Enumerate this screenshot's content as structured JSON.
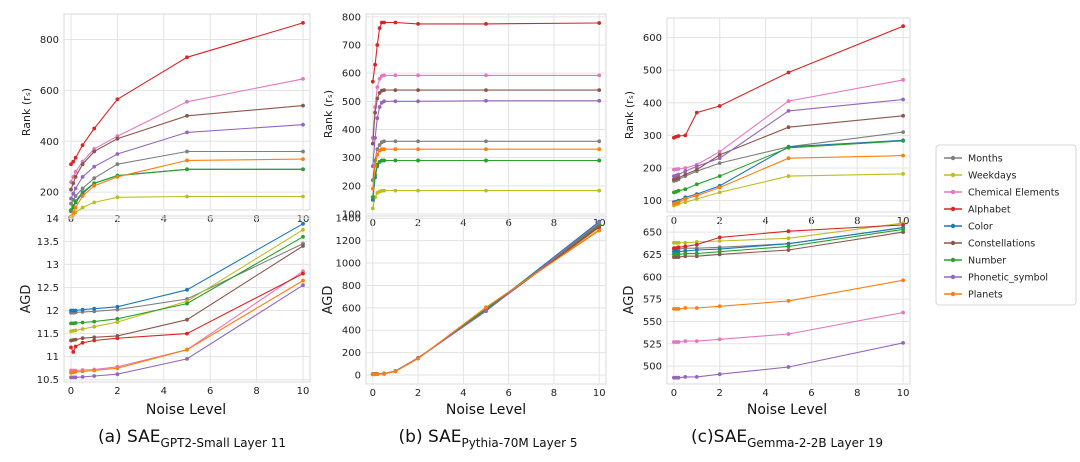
{
  "legend": [
    {
      "name": "Months",
      "color": "#7f7f7f"
    },
    {
      "name": "Weekdays",
      "color": "#bcbd22"
    },
    {
      "name": "Chemical Elements",
      "color": "#e377c2"
    },
    {
      "name": "Alphabet",
      "color": "#d62728"
    },
    {
      "name": "Color",
      "color": "#1f77b4"
    },
    {
      "name": "Constellations",
      "color": "#8c564b"
    },
    {
      "name": "Number",
      "color": "#2ca02c"
    },
    {
      "name": "Phonetic_symbol",
      "color": "#9467bd"
    },
    {
      "name": "Planets",
      "color": "#ff7f0e"
    }
  ],
  "columns": [
    {
      "caption_main": "(a) SAE",
      "caption_sub": "GPT2-Small Layer 11"
    },
    {
      "caption_main": "(b) SAE",
      "caption_sub": "Pythia-70M Layer 5"
    },
    {
      "caption_main": "(c)SAE",
      "caption_sub": "Gemma-2-2B Layer 19"
    }
  ],
  "x_label": "Noise Level",
  "chart_data": [
    {
      "id": "a-rank",
      "type": "line",
      "ylabel": "Rank (rₛ)",
      "x": [
        0,
        0.1,
        0.2,
        0.5,
        1,
        2,
        5,
        10
      ],
      "xlim": [
        -0.3,
        10.3
      ],
      "xticks": [
        0,
        2,
        4,
        6,
        8,
        10
      ],
      "ylim": [
        130,
        900
      ],
      "yticks": [
        200,
        400,
        600,
        800
      ],
      "series": [
        {
          "name": "Months",
          "values": [
            155,
            170,
            185,
            215,
            255,
            310,
            360,
            360
          ]
        },
        {
          "name": "Weekdays",
          "values": [
            100,
            110,
            120,
            140,
            160,
            180,
            183,
            183
          ]
        },
        {
          "name": "Chemical Elements",
          "values": [
            240,
            260,
            280,
            320,
            370,
            420,
            555,
            645
          ]
        },
        {
          "name": "Alphabet",
          "values": [
            310,
            320,
            335,
            385,
            450,
            565,
            730,
            865
          ]
        },
        {
          "name": "Color",
          "values": [
            125,
            140,
            160,
            195,
            235,
            265,
            290,
            290
          ]
        },
        {
          "name": "Constellations",
          "values": [
            210,
            235,
            260,
            310,
            360,
            410,
            500,
            540
          ]
        },
        {
          "name": "Number",
          "values": [
            130,
            145,
            165,
            200,
            235,
            265,
            290,
            290
          ]
        },
        {
          "name": "Phonetic_symbol",
          "values": [
            175,
            195,
            215,
            260,
            300,
            350,
            435,
            465
          ]
        },
        {
          "name": "Planets",
          "values": [
            105,
            120,
            140,
            185,
            225,
            260,
            325,
            330
          ]
        }
      ]
    },
    {
      "id": "b-rank",
      "type": "line",
      "ylabel": "Rank (rₛ)",
      "x": [
        0,
        0.1,
        0.2,
        0.3,
        0.4,
        0.5,
        1,
        2,
        5,
        10
      ],
      "xlim": [
        -0.3,
        10.3
      ],
      "xticks": [
        0,
        2,
        4,
        6,
        8,
        10
      ],
      "ylim": [
        100,
        810
      ],
      "yticks": [
        100,
        200,
        300,
        400,
        500,
        600,
        700,
        800
      ],
      "series": [
        {
          "name": "Months",
          "values": [
            220,
            290,
            330,
            345,
            355,
            358,
            358,
            358,
            358,
            358
          ]
        },
        {
          "name": "Weekdays",
          "values": [
            120,
            160,
            175,
            180,
            182,
            183,
            183,
            183,
            183,
            183
          ]
        },
        {
          "name": "Chemical Elements",
          "values": [
            370,
            480,
            550,
            580,
            590,
            592,
            592,
            592,
            592,
            592
          ]
        },
        {
          "name": "Alphabet",
          "values": [
            570,
            630,
            700,
            760,
            780,
            780,
            780,
            775,
            775,
            778
          ]
        },
        {
          "name": "Color",
          "values": [
            150,
            230,
            270,
            285,
            290,
            290,
            290,
            290,
            290,
            290
          ]
        },
        {
          "name": "Constellations",
          "values": [
            350,
            460,
            510,
            530,
            538,
            540,
            540,
            540,
            540,
            540
          ]
        },
        {
          "name": "Number",
          "values": [
            160,
            240,
            275,
            285,
            290,
            290,
            290,
            290,
            290,
            290
          ]
        },
        {
          "name": "Phonetic_symbol",
          "values": [
            270,
            370,
            440,
            480,
            495,
            500,
            500,
            500,
            502,
            502
          ]
        },
        {
          "name": "Planets",
          "values": [
            190,
            270,
            310,
            325,
            330,
            330,
            330,
            330,
            330,
            330
          ]
        }
      ]
    },
    {
      "id": "c-rank",
      "type": "line",
      "ylabel": "Rank (rₛ)",
      "x": [
        0,
        0.1,
        0.2,
        0.5,
        1,
        2,
        5,
        10
      ],
      "xlim": [
        -0.3,
        10.3
      ],
      "xticks": [
        0,
        2,
        4,
        6,
        8,
        10
      ],
      "ylim": [
        65,
        660
      ],
      "yticks": [
        100,
        200,
        300,
        400,
        500,
        600
      ],
      "series": [
        {
          "name": "Months",
          "values": [
            160,
            162,
            165,
            175,
            190,
            215,
            265,
            310
          ]
        },
        {
          "name": "Weekdays",
          "values": [
            85,
            88,
            90,
            95,
            105,
            125,
            175,
            182
          ]
        },
        {
          "name": "Chemical Elements",
          "values": [
            195,
            196,
            197,
            200,
            210,
            250,
            405,
            470
          ]
        },
        {
          "name": "Alphabet",
          "values": [
            293,
            296,
            298,
            300,
            370,
            390,
            493,
            635
          ]
        },
        {
          "name": "Color",
          "values": [
            95,
            97,
            100,
            110,
            120,
            145,
            265,
            285
          ]
        },
        {
          "name": "Constellations",
          "values": [
            165,
            167,
            170,
            180,
            195,
            240,
            325,
            360
          ]
        },
        {
          "name": "Number",
          "values": [
            125,
            127,
            130,
            135,
            150,
            175,
            262,
            283
          ]
        },
        {
          "name": "Phonetic_symbol",
          "values": [
            175,
            177,
            180,
            190,
            205,
            230,
            375,
            410
          ]
        },
        {
          "name": "Planets",
          "values": [
            90,
            92,
            95,
            105,
            115,
            140,
            230,
            238
          ]
        }
      ]
    },
    {
      "id": "a-agd",
      "type": "line",
      "ylabel": "AGD",
      "x": [
        0,
        0.1,
        0.2,
        0.5,
        1,
        2,
        5,
        10
      ],
      "xlim": [
        -0.3,
        10.3
      ],
      "xticks": [
        0,
        2,
        4,
        6,
        8,
        10
      ],
      "ylim": [
        10.45,
        14.05
      ],
      "yticks": [
        10.5,
        11.0,
        11.5,
        12.0,
        12.5,
        13.0,
        13.5,
        14.0
      ],
      "series": [
        {
          "name": "Months",
          "values": [
            11.95,
            11.95,
            11.96,
            11.97,
            11.98,
            12.02,
            12.25,
            13.45
          ]
        },
        {
          "name": "Weekdays",
          "values": [
            11.55,
            11.56,
            11.57,
            11.6,
            11.65,
            11.75,
            12.2,
            13.75
          ]
        },
        {
          "name": "Chemical Elements",
          "values": [
            10.7,
            10.7,
            10.7,
            10.71,
            10.72,
            10.78,
            11.15,
            12.85
          ]
        },
        {
          "name": "Alphabet",
          "values": [
            11.2,
            11.1,
            11.22,
            11.3,
            11.35,
            11.4,
            11.5,
            12.8
          ]
        },
        {
          "name": "Color",
          "values": [
            12.0,
            12.0,
            12.0,
            12.02,
            12.04,
            12.08,
            12.45,
            13.88
          ]
        },
        {
          "name": "Constellations",
          "values": [
            11.35,
            11.36,
            11.37,
            11.4,
            11.42,
            11.45,
            11.8,
            13.4
          ]
        },
        {
          "name": "Number",
          "values": [
            11.72,
            11.72,
            11.73,
            11.74,
            11.76,
            11.82,
            12.15,
            13.6
          ]
        },
        {
          "name": "Phonetic_symbol",
          "values": [
            10.55,
            10.55,
            10.55,
            10.56,
            10.58,
            10.62,
            10.95,
            12.55
          ]
        },
        {
          "name": "Planets",
          "values": [
            10.65,
            10.66,
            10.67,
            10.68,
            10.7,
            10.75,
            11.15,
            12.65
          ]
        }
      ]
    },
    {
      "id": "b-agd",
      "type": "line",
      "ylabel": "AGD",
      "x": [
        0,
        0.1,
        0.2,
        0.5,
        1,
        2,
        5,
        10
      ],
      "xlim": [
        -0.3,
        10.3
      ],
      "xticks": [
        0,
        2,
        4,
        6,
        8,
        10
      ],
      "ylim": [
        -80,
        1420
      ],
      "yticks": [
        0,
        200,
        400,
        600,
        800,
        1000,
        1200,
        1400
      ],
      "series": [
        {
          "name": "Months",
          "values": [
            8,
            8,
            9,
            12,
            35,
            150,
            590,
            1340
          ]
        },
        {
          "name": "Weekdays",
          "values": [
            7,
            7,
            8,
            11,
            33,
            148,
            600,
            1300
          ]
        },
        {
          "name": "Chemical Elements",
          "values": [
            8,
            8,
            9,
            12,
            34,
            151,
            585,
            1350
          ]
        },
        {
          "name": "Alphabet",
          "values": [
            8,
            9,
            10,
            13,
            36,
            153,
            580,
            1320
          ]
        },
        {
          "name": "Color",
          "values": [
            8,
            8,
            9,
            12,
            35,
            152,
            580,
            1370
          ]
        },
        {
          "name": "Constellations",
          "values": [
            8,
            8,
            9,
            12,
            35,
            150,
            575,
            1330
          ]
        },
        {
          "name": "Number",
          "values": [
            7,
            8,
            9,
            12,
            34,
            149,
            590,
            1345
          ]
        },
        {
          "name": "Phonetic_symbol",
          "values": [
            8,
            8,
            9,
            12,
            35,
            151,
            570,
            1360
          ]
        },
        {
          "name": "Planets",
          "values": [
            7,
            7,
            8,
            11,
            33,
            148,
            605,
            1290
          ]
        }
      ]
    },
    {
      "id": "c-agd",
      "type": "line",
      "ylabel": "AGD",
      "x": [
        0,
        0.1,
        0.2,
        0.5,
        1,
        2,
        5,
        10
      ],
      "xlim": [
        -0.3,
        10.3
      ],
      "xticks": [
        0,
        2,
        4,
        6,
        8,
        10
      ],
      "ylim": [
        480,
        668
      ],
      "yticks": [
        500,
        525,
        550,
        575,
        600,
        625,
        650
      ],
      "series": [
        {
          "name": "Months",
          "values": [
            631,
            631,
            631,
            632,
            632,
            633,
            637,
            655
          ]
        },
        {
          "name": "Weekdays",
          "values": [
            638,
            638,
            638,
            638,
            639,
            640,
            643,
            660
          ]
        },
        {
          "name": "Chemical Elements",
          "values": [
            527,
            527,
            527,
            528,
            528,
            530,
            536,
            560
          ]
        },
        {
          "name": "Alphabet",
          "values": [
            632,
            632,
            633,
            634,
            636,
            644,
            651,
            658
          ]
        },
        {
          "name": "Color",
          "values": [
            628,
            628,
            628,
            629,
            630,
            631,
            637,
            655
          ]
        },
        {
          "name": "Constellations",
          "values": [
            622,
            622,
            622,
            623,
            623,
            625,
            630,
            650
          ]
        },
        {
          "name": "Number",
          "values": [
            625,
            625,
            625,
            626,
            626,
            628,
            634,
            653
          ]
        },
        {
          "name": "Phonetic_symbol",
          "values": [
            487,
            487,
            487,
            488,
            488,
            491,
            499,
            526
          ]
        },
        {
          "name": "Planets",
          "values": [
            564,
            564,
            564,
            565,
            565,
            567,
            573,
            596
          ]
        }
      ]
    }
  ]
}
